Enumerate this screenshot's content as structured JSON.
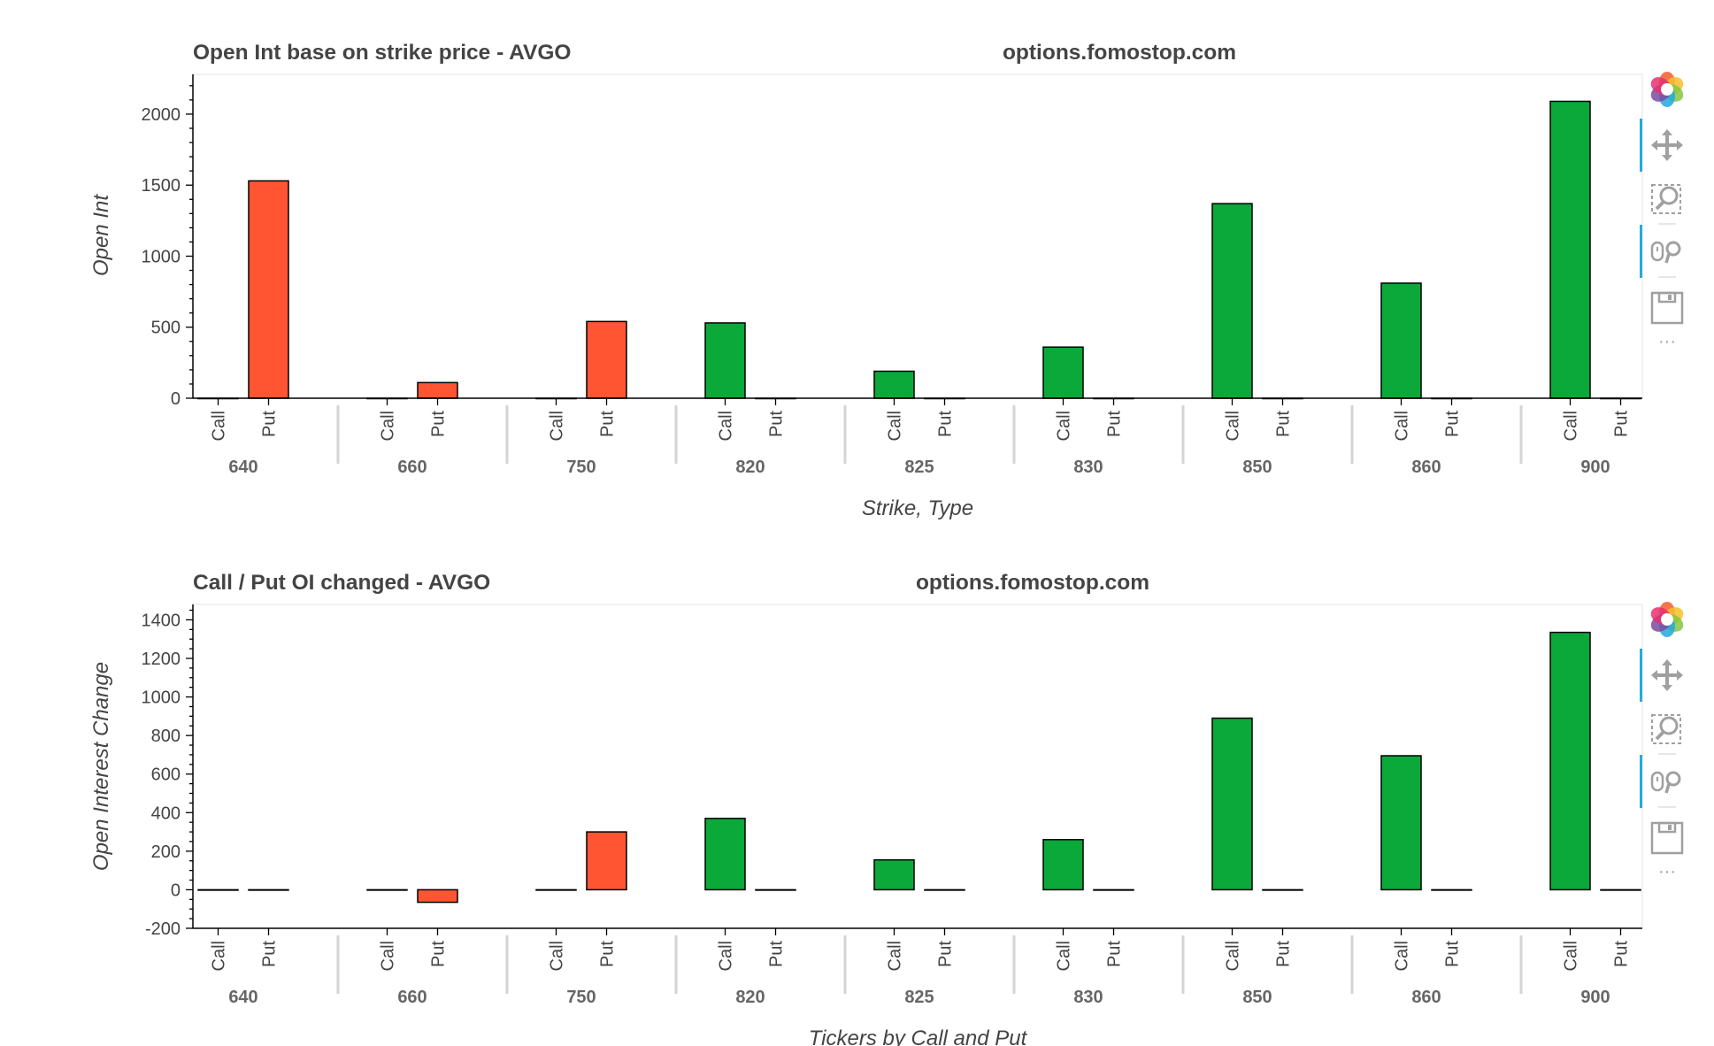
{
  "colors": {
    "call": "#0ba83a",
    "put": "#ff5533",
    "outline": "#000000",
    "group_sep": "#d4d4d4",
    "text": "#444444",
    "tool_gray": "#a0a0a0",
    "tool_active": "#26aae1"
  },
  "toolbar": {
    "icons": [
      "bokeh-logo-icon",
      "pan-icon",
      "box-zoom-icon",
      "wheel-zoom-icon",
      "save-icon",
      "more-icon"
    ],
    "more_label": "···"
  },
  "chart_data": [
    {
      "type": "bar",
      "title": "Open Int base on strike price - AVGO",
      "watermark": "options.fomostop.com",
      "xlabel": "Strike, Type",
      "ylabel": "Open Int",
      "ylim": [
        0,
        2280
      ],
      "yticks": [
        0,
        500,
        1000,
        1500,
        2000
      ],
      "minor_per_major": 5,
      "categories": [
        "640",
        "660",
        "750",
        "820",
        "825",
        "830",
        "850",
        "860",
        "900"
      ],
      "subcategories": [
        "Call",
        "Put"
      ],
      "series": [
        {
          "name": "Call",
          "values": [
            0,
            0,
            0,
            530,
            190,
            360,
            1370,
            810,
            2090
          ]
        },
        {
          "name": "Put",
          "values": [
            1530,
            110,
            540,
            0,
            0,
            0,
            0,
            0,
            0
          ]
        }
      ]
    },
    {
      "type": "bar",
      "title": "Call / Put OI changed - AVGO",
      "watermark": "options.fomostop.com",
      "xlabel": "Tickers by Call and Put",
      "ylabel": "Open Interest Change",
      "ylim": [
        -200,
        1480
      ],
      "yticks": [
        -200,
        0,
        200,
        400,
        600,
        800,
        1000,
        1200,
        1400
      ],
      "minor_per_major": 4,
      "categories": [
        "640",
        "660",
        "750",
        "820",
        "825",
        "830",
        "850",
        "860",
        "900"
      ],
      "subcategories": [
        "Call",
        "Put"
      ],
      "series": [
        {
          "name": "Call",
          "values": [
            0,
            0,
            0,
            370,
            155,
            260,
            890,
            695,
            1335
          ]
        },
        {
          "name": "Put",
          "values": [
            0,
            -65,
            300,
            0,
            0,
            0,
            0,
            0,
            0
          ]
        }
      ]
    }
  ]
}
